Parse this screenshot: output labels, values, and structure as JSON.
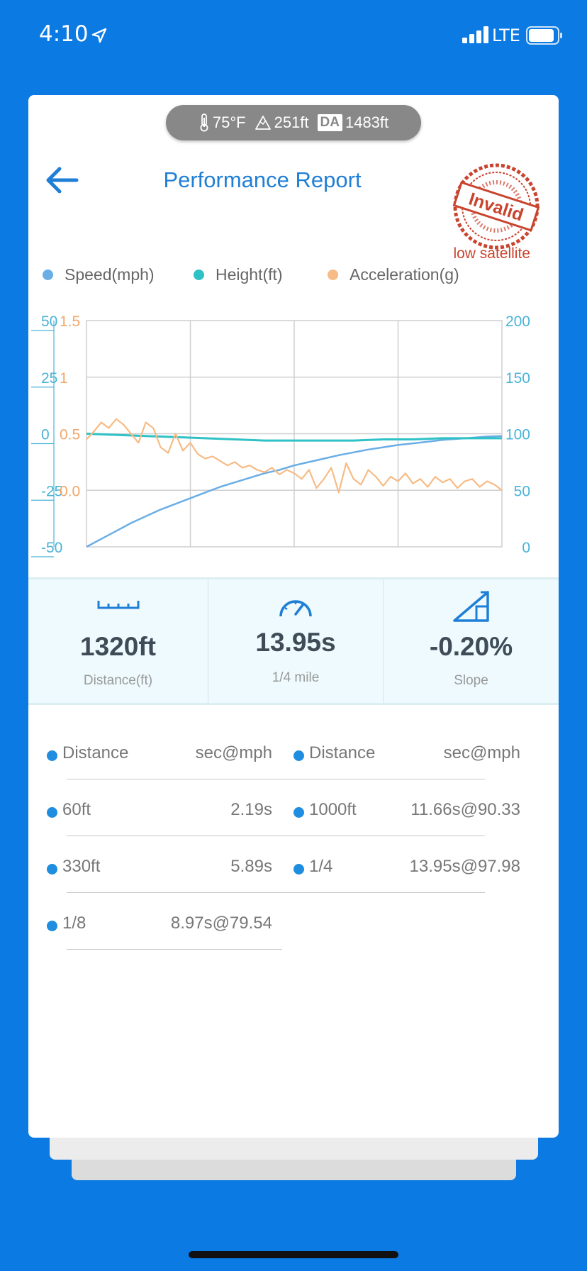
{
  "status_bar": {
    "time": "4:10",
    "network": "LTE",
    "icons": [
      "location-arrow-icon",
      "signal-icon",
      "battery-icon"
    ]
  },
  "conditions": {
    "temperature": "75°F",
    "elevation": "251ft",
    "da_badge": "DA",
    "density_altitude": "1483ft",
    "icons": [
      "thermometer-icon",
      "mountain-icon"
    ]
  },
  "header": {
    "title": "Performance Report",
    "stamp_text": "Invalid",
    "stamp_reason": "low satellite"
  },
  "colors": {
    "background": "#0c7ae3",
    "accent": "#1f7fd6",
    "speed": "#6aaee6",
    "height": "#2ec1c6",
    "acceleration": "#f7bb85",
    "stamp": "#c9442e"
  },
  "chart_data": {
    "type": "line",
    "legend": [
      "Speed(mph)",
      "Height(ft)",
      "Acceleration(g)"
    ],
    "x": {
      "min": 0,
      "max": 14,
      "gridlines": 4,
      "tick_labels": false
    },
    "axes": {
      "height_ticks": [
        "50",
        "25",
        "0",
        "-25",
        "-50"
      ],
      "acceleration_ticks": [
        "1.5",
        "1",
        "0.5",
        "0.0"
      ],
      "speed_ticks": [
        "200",
        "150",
        "100",
        "50",
        "0"
      ]
    },
    "ranges": {
      "height": [
        -50,
        50
      ],
      "acceleration": [
        -0.5,
        1.5
      ],
      "speed": [
        0,
        200
      ]
    },
    "series": [
      {
        "name": "Speed(mph)",
        "axis": "speed",
        "x": [
          0,
          0.5,
          1,
          1.5,
          2,
          2.5,
          3,
          3.5,
          4,
          4.5,
          5,
          5.5,
          6,
          6.5,
          7,
          7.5,
          8,
          8.5,
          9,
          9.5,
          10,
          10.5,
          11,
          11.5,
          12,
          12.5,
          13,
          13.5,
          14
        ],
        "values": [
          0,
          7,
          14,
          21,
          27,
          33,
          38,
          43,
          48,
          53,
          57,
          61,
          65,
          68,
          72,
          75,
          78,
          81,
          83.5,
          86,
          88,
          90,
          91.5,
          93,
          94.5,
          95.5,
          96.5,
          97.5,
          98
        ]
      },
      {
        "name": "Height(ft)",
        "axis": "height",
        "x": [
          0,
          1,
          2,
          3,
          4,
          5,
          6,
          7,
          8,
          9,
          10,
          11,
          12,
          13,
          14
        ],
        "values": [
          0,
          -0.5,
          -1,
          -1.5,
          -2,
          -2.5,
          -3,
          -3,
          -3,
          -3,
          -2.5,
          -2.5,
          -2,
          -2,
          -2
        ]
      },
      {
        "name": "Acceleration(g)",
        "axis": "acceleration",
        "x": [
          0,
          0.25,
          0.5,
          0.75,
          1,
          1.25,
          1.5,
          1.75,
          2,
          2.25,
          2.5,
          2.75,
          3,
          3.25,
          3.5,
          3.75,
          4,
          4.25,
          4.5,
          4.75,
          5,
          5.25,
          5.5,
          5.75,
          6,
          6.25,
          6.5,
          6.75,
          7,
          7.25,
          7.5,
          7.75,
          8,
          8.25,
          8.5,
          8.75,
          9,
          9.25,
          9.5,
          9.75,
          10,
          10.25,
          10.5,
          10.75,
          11,
          11.25,
          11.5,
          11.75,
          12,
          12.25,
          12.5,
          12.75,
          13,
          13.25,
          13.5,
          13.75,
          14
        ],
        "values": [
          0.45,
          0.52,
          0.6,
          0.55,
          0.63,
          0.58,
          0.5,
          0.42,
          0.6,
          0.55,
          0.38,
          0.33,
          0.5,
          0.35,
          0.42,
          0.32,
          0.28,
          0.3,
          0.26,
          0.22,
          0.25,
          0.2,
          0.22,
          0.18,
          0.16,
          0.2,
          0.14,
          0.18,
          0.15,
          0.1,
          0.18,
          0.02,
          0.1,
          0.2,
          -0.02,
          0.24,
          0.1,
          0.05,
          0.18,
          0.12,
          0.04,
          0.12,
          0.08,
          0.15,
          0.06,
          0.1,
          0.03,
          0.12,
          0.07,
          0.1,
          0.02,
          0.08,
          0.1,
          0.03,
          0.08,
          0.05,
          0.0
        ]
      }
    ]
  },
  "stats": [
    {
      "value": "1320ft",
      "label": "Distance(ft)",
      "icon": "ruler-icon"
    },
    {
      "value": "13.95s",
      "label": "1/4 mile",
      "icon": "speedometer-icon"
    },
    {
      "value": "-0.20%",
      "label": "Slope",
      "icon": "slope-icon"
    }
  ],
  "splits": {
    "left_header": {
      "label": "Distance",
      "value": "sec@mph"
    },
    "right_header": {
      "label": "Distance",
      "value": "sec@mph"
    },
    "left_rows": [
      {
        "label": "60ft",
        "value": "2.19s"
      },
      {
        "label": "330ft",
        "value": "5.89s"
      },
      {
        "label": "1/8",
        "value": "8.97s@79.54"
      }
    ],
    "right_rows": [
      {
        "label": "1000ft",
        "value": "11.66s@90.33"
      },
      {
        "label": "1/4",
        "value": "13.95s@97.98"
      }
    ]
  }
}
